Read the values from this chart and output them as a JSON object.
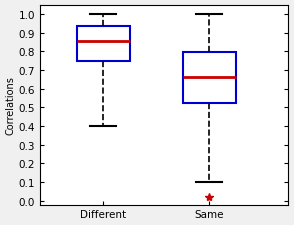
{
  "box1": {
    "whislo": 0.4,
    "q1": 0.75,
    "med": 0.855,
    "q3": 0.935,
    "whishi": 1.0,
    "fliers": []
  },
  "box2": {
    "whislo": 0.1,
    "q1": 0.525,
    "med": 0.665,
    "q3": 0.795,
    "whishi": 1.0,
    "fliers": [
      0.02
    ]
  },
  "labels": [
    "Different",
    "Same"
  ],
  "ylabel": "Correlations",
  "ylim": [
    -0.02,
    1.05
  ],
  "yticks": [
    0.0,
    0.1,
    0.2,
    0.3,
    0.4,
    0.5,
    0.6,
    0.7,
    0.8,
    0.9,
    1.0
  ],
  "box_color": "#0000cc",
  "median_color": "#cc0000",
  "whisker_color": "#000000",
  "flier_color": "#cc0000",
  "bg_color": "#ffffff",
  "fig_bg_color": "#f0f0f0"
}
